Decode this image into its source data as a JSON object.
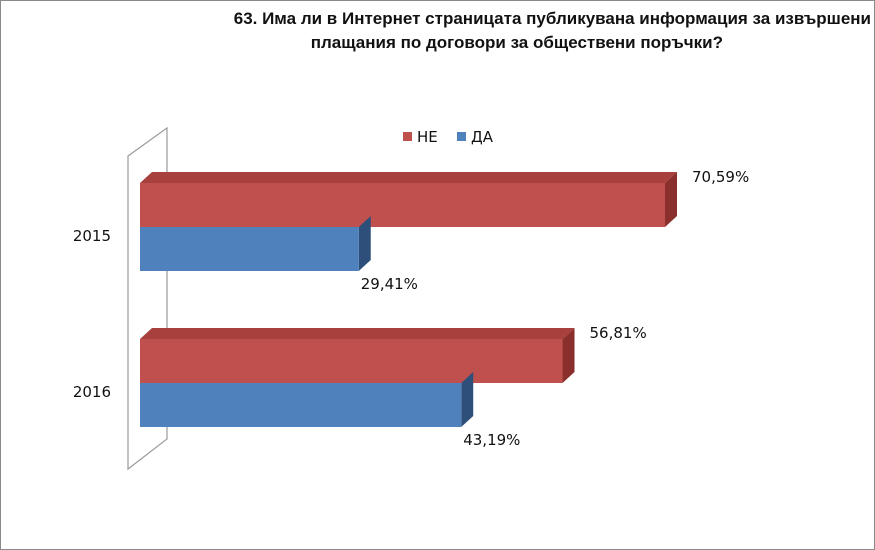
{
  "chart_data": {
    "type": "bar",
    "orientation": "horizontal",
    "style": "3d",
    "title_lines": [
      "63. Има ли в Интернет страницата публикувана информация за извършени",
      "плащания по договори за обществени поръчки?"
    ],
    "categories": [
      "2015",
      "2016"
    ],
    "series": [
      {
        "name": "НЕ",
        "values": [
          70.59,
          56.81
        ],
        "labels": [
          "70,59%",
          "56,81%"
        ],
        "color": "#c0504d",
        "side": "#8b2f2c",
        "top": "#a8403d"
      },
      {
        "name": "ДА",
        "values": [
          29.41,
          43.19
        ],
        "labels": [
          "29,41%",
          "43,19%"
        ],
        "color": "#4f81bd",
        "side": "#2e4f7a",
        "top": "#3f6ea6"
      }
    ],
    "legend_position": "top",
    "xlim": [
      0,
      80
    ],
    "grid": false
  }
}
